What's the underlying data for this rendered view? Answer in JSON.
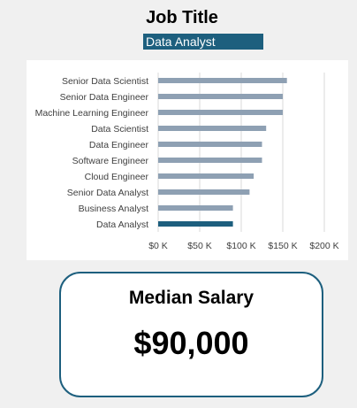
{
  "header": {
    "title": "Job Title",
    "selected_job": "Data Analyst",
    "select_color": "#1d5f7e"
  },
  "chart_data": {
    "type": "bar",
    "orientation": "horizontal",
    "categories": [
      "Senior Data Scientist",
      "Senior Data Engineer",
      "Machine Learning Engineer",
      "Data Scientist",
      "Data Engineer",
      "Software Engineer",
      "Cloud Engineer",
      "Senior Data Analyst",
      "Business Analyst",
      "Data Analyst"
    ],
    "values": [
      155000,
      150000,
      150000,
      130000,
      125000,
      125000,
      115000,
      110000,
      90000,
      90000
    ],
    "highlight": "Data Analyst",
    "xlim": [
      0,
      200000
    ],
    "xticks": [
      0,
      50000,
      100000,
      150000,
      200000
    ],
    "xtick_labels": [
      "$0 K",
      "$50 K",
      "$100 K",
      "$150 K",
      "$200 K"
    ],
    "grid": true,
    "bar_color": "#8ea0b3",
    "highlight_color": "#1d5f7e"
  },
  "kpi": {
    "label": "Median Salary",
    "value": "$90,000"
  }
}
